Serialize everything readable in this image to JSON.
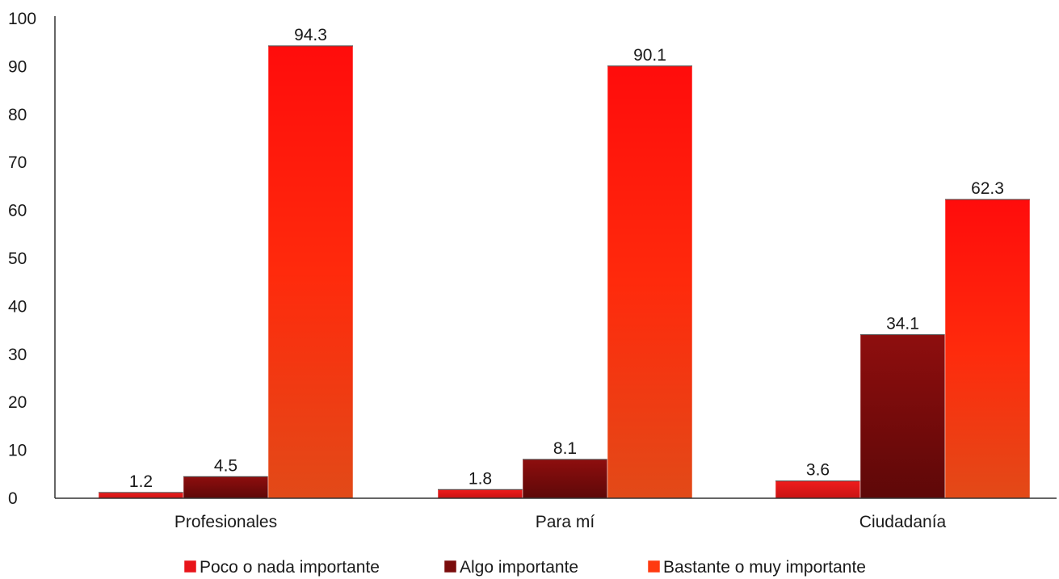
{
  "chart_data": {
    "type": "bar",
    "categories": [
      "Profesionales",
      "Para mí",
      "Ciudadanía"
    ],
    "series": [
      {
        "name": "Poco o nada importante",
        "values": [
          1.2,
          1.8,
          3.6
        ],
        "color": "#e8141a",
        "gradient": [
          "#ef1c1c",
          "#c81414"
        ]
      },
      {
        "name": "Algo importante",
        "values": [
          4.5,
          8.1,
          34.1
        ],
        "color": "#7a0c0c",
        "gradient": [
          "#8e0e0e",
          "#5e0808"
        ]
      },
      {
        "name": "Bastante o muy importante",
        "values": [
          94.3,
          90.1,
          62.3
        ],
        "color": "#ff3a10",
        "gradient": [
          "#ff0c0c",
          "#ff2a0c",
          "#e24a18"
        ]
      }
    ],
    "ylim": [
      0,
      100
    ],
    "yticks": [
      "0",
      "10",
      "20",
      "30",
      "40",
      "50",
      "60",
      "70",
      "80",
      "90",
      "100"
    ],
    "data_labels": [
      [
        "1.2",
        "1.8",
        "3.6"
      ],
      [
        "4.5",
        "8.1",
        "34.1"
      ],
      [
        "94.3",
        "90.1",
        "62.3"
      ]
    ],
    "grid": false,
    "legend_position": "bottom-center",
    "title": "",
    "xlabel": "",
    "ylabel": ""
  }
}
